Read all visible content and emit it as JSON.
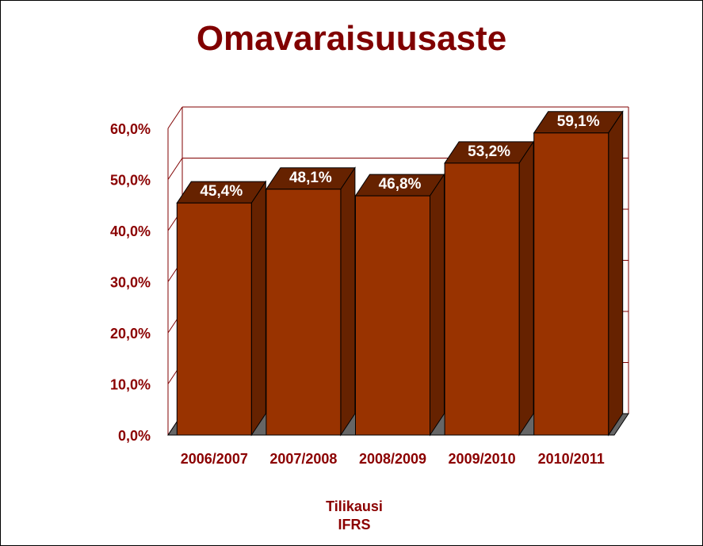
{
  "chart_data": {
    "type": "bar",
    "title": "Omavaraisuusaste",
    "xlabel": "Tilikausi",
    "xlabel_sub": "IFRS",
    "categories": [
      "2006/2007",
      "2007/2008",
      "2008/2009",
      "2009/2010",
      "2010/2011"
    ],
    "values": [
      45.4,
      48.1,
      46.8,
      53.2,
      59.1
    ],
    "data_labels": [
      "45,4%",
      "48,1%",
      "46,8%",
      "53,2%",
      "59,1%"
    ],
    "yticks": [
      0,
      10,
      20,
      30,
      40,
      50,
      60
    ],
    "ytick_labels": [
      "0,0%",
      "10,0%",
      "20,0%",
      "30,0%",
      "40,0%",
      "50,0%",
      "60,0%"
    ],
    "ylim": [
      0,
      60
    ],
    "grid": true,
    "style": "3d-column",
    "legend": "none"
  },
  "colors": {
    "title": "#800000",
    "axis_text": "#8b0000",
    "bar_front": "#993300",
    "bar_top": "#662200",
    "bar_side": "#662200",
    "floor": "#666666",
    "gridlines": "#800000"
  }
}
